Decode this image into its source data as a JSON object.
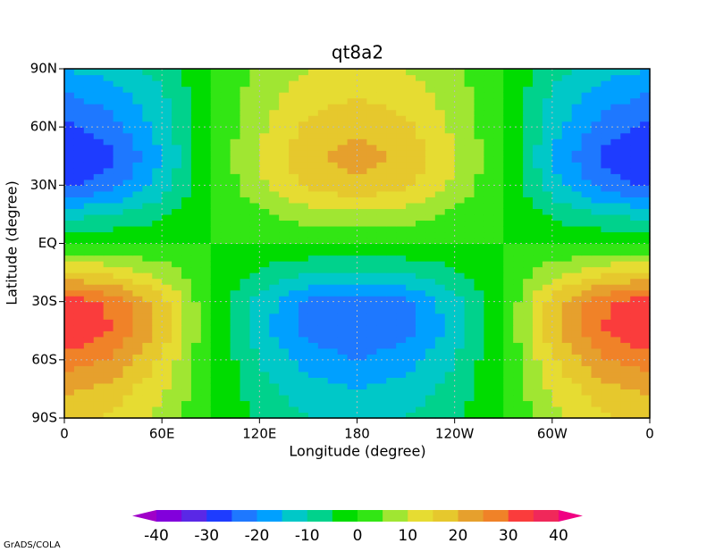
{
  "chart_data": {
    "type": "contour",
    "title": "qt8a2",
    "xlabel": "Longitude (degree)",
    "ylabel": "Latitude (degree)",
    "xlim": [
      0,
      360
    ],
    "ylim": [
      -90,
      90
    ],
    "xticks": [
      {
        "value": 0,
        "label": "0"
      },
      {
        "value": 60,
        "label": "60E"
      },
      {
        "value": 120,
        "label": "120E"
      },
      180,
      {
        "value": 240,
        "label": "120W"
      },
      {
        "value": 300,
        "label": "60W"
      },
      {
        "value": 360,
        "label": "0"
      }
    ],
    "yticks": [
      {
        "value": -90,
        "label": "90S"
      },
      {
        "value": -60,
        "label": "60S"
      },
      {
        "value": -30,
        "label": "30S"
      },
      {
        "value": 0,
        "label": "EQ"
      },
      {
        "value": 30,
        "label": "30N"
      },
      {
        "value": 60,
        "label": "60N"
      },
      {
        "value": 90,
        "label": "90N"
      }
    ],
    "grid": true,
    "x": [
      0,
      30,
      60,
      90,
      120,
      150,
      180,
      210,
      240,
      270,
      300,
      330,
      360
    ],
    "y": [
      -90,
      -75,
      -60,
      -45,
      -30,
      -15,
      0,
      15,
      30,
      45,
      60,
      75,
      90
    ],
    "z": [
      [
        16,
        14,
        8,
        0,
        -6,
        -10,
        -11,
        -10,
        -6,
        0,
        8,
        14,
        16
      ],
      [
        21,
        18,
        11,
        0,
        -8,
        -13,
        -15,
        -13,
        -8,
        0,
        11,
        18,
        21
      ],
      [
        28,
        24,
        14,
        0,
        -10,
        -17,
        -20,
        -17,
        -10,
        0,
        14,
        24,
        28
      ],
      [
        35,
        30,
        18,
        0,
        -13,
        -22,
        -25,
        -22,
        -13,
        0,
        18,
        30,
        35
      ],
      [
        33,
        29,
        17,
        0,
        -12,
        -21,
        -24,
        -21,
        -12,
        0,
        17,
        29,
        33
      ],
      [
        16,
        14,
        8,
        0,
        -6,
        -10,
        -11,
        -10,
        -6,
        0,
        8,
        14,
        16
      ],
      [
        0,
        0,
        0,
        0,
        0,
        0,
        0,
        0,
        0,
        0,
        0,
        0,
        0
      ],
      [
        -12,
        -10,
        -6,
        0,
        4,
        8,
        9,
        8,
        4,
        0,
        -6,
        -10,
        -12
      ],
      [
        -26,
        -22,
        -13,
        0,
        9,
        16,
        19,
        16,
        9,
        0,
        -13,
        -22,
        -26
      ],
      [
        -30,
        -26,
        -15,
        0,
        11,
        19,
        22,
        19,
        11,
        0,
        -15,
        -26,
        -30
      ],
      [
        -26,
        -22,
        -13,
        0,
        9,
        16,
        19,
        16,
        9,
        0,
        -13,
        -22,
        -26
      ],
      [
        -21,
        -18,
        -11,
        0,
        8,
        13,
        15,
        13,
        8,
        0,
        -11,
        -18,
        -21
      ],
      [
        -15,
        -13,
        -8,
        0,
        6,
        10,
        11,
        10,
        6,
        0,
        -8,
        -13,
        -15
      ]
    ],
    "levels": [
      -40,
      -35,
      -30,
      -25,
      -20,
      -15,
      -10,
      -5,
      0,
      5,
      10,
      15,
      20,
      25,
      30,
      35,
      40
    ],
    "colors": [
      "#a000c8",
      "#8200dc",
      "#5a28e6",
      "#1e3cff",
      "#1e78ff",
      "#00a0ff",
      "#00c8c8",
      "#00d28c",
      "#00dc00",
      "#32e614",
      "#a0e632",
      "#e6dc32",
      "#e6c82d",
      "#e6a02d",
      "#f08228",
      "#fa3c3c",
      "#f0285a",
      "#f00082"
    ],
    "footer": "GrADS/COLA"
  }
}
